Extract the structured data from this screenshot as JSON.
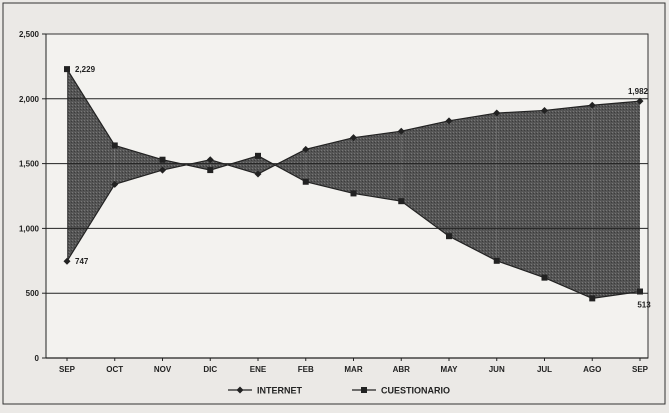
{
  "chart_data": {
    "type": "line",
    "title": "",
    "xlabel": "",
    "ylabel": "",
    "categories": [
      "SEP",
      "OCT",
      "NOV",
      "DIC",
      "ENE",
      "FEB",
      "MAR",
      "ABR",
      "MAY",
      "JUN",
      "JUL",
      "AGO",
      "SEP"
    ],
    "ylim": [
      0,
      2500
    ],
    "yticks": [
      0,
      500,
      1000,
      1500,
      2000,
      2500
    ],
    "ytick_labels": [
      "0",
      "500",
      "1,000",
      "1,500",
      "2,000",
      "2,500"
    ],
    "grid": true,
    "legend_position": "bottom",
    "fill_between": true,
    "series": [
      {
        "name": "INTERNET",
        "marker": "diamond",
        "values": [
          747,
          1340,
          1450,
          1530,
          1420,
          1610,
          1700,
          1750,
          1830,
          1890,
          1910,
          1950,
          1982
        ]
      },
      {
        "name": "CUESTIONARIO",
        "marker": "square",
        "values": [
          2229,
          1640,
          1530,
          1450,
          1560,
          1360,
          1270,
          1210,
          940,
          750,
          620,
          460,
          513
        ]
      }
    ],
    "annotations": [
      {
        "series": 1,
        "index": 0,
        "text": "2,229"
      },
      {
        "series": 0,
        "index": 0,
        "text": "747"
      },
      {
        "series": 0,
        "index": 12,
        "text": "1,982"
      },
      {
        "series": 1,
        "index": 12,
        "text": "513"
      }
    ],
    "colors": {
      "background": "#ebe9e6",
      "plot_background": "#f3f2ef",
      "line": "#222222",
      "fill": "#555555",
      "grid": "#222222"
    }
  }
}
